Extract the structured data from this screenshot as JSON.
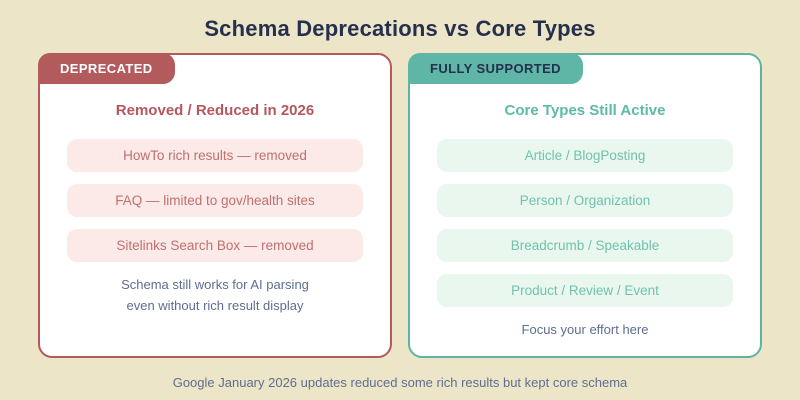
{
  "title": "Schema Deprecations vs Core Types",
  "colors": {
    "background": "#EDE5C7",
    "title_navy": "#24304E",
    "accent_red": "#B25A5C",
    "accent_teal": "#5FB3A3",
    "tag_teal_bg": "#60B6A6",
    "pill_red_bg": "#FBEAE8",
    "pill_red_text": "#C0706E",
    "pill_teal_bg": "#E9F7EF",
    "pill_teal_text": "#6FC3AD",
    "note_gray_blue": "#5E6E90"
  },
  "panels": {
    "deprecated": {
      "tag": "DEPRECATED",
      "heading": "Removed / Reduced in 2026",
      "items": [
        "HowTo rich results — removed",
        "FAQ — limited to gov/health sites",
        "Sitelinks Search Box — removed"
      ],
      "note_line1": "Schema still works for AI parsing",
      "note_line2": "even without rich result display"
    },
    "supported": {
      "tag": "FULLY SUPPORTED",
      "heading": "Core Types Still Active",
      "items": [
        "Article / BlogPosting",
        "Person / Organization",
        "Breadcrumb / Speakable",
        "Product / Review / Event"
      ],
      "note_line1": "Focus your effort here"
    }
  },
  "footer": "Google January 2026 updates reduced some rich results but kept core schema"
}
